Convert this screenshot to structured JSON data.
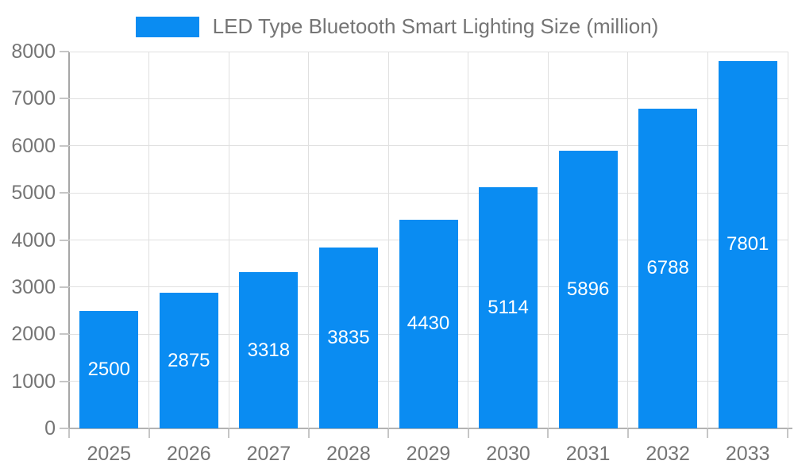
{
  "legend": {
    "label": "LED Type Bluetooth Smart Lighting Size (million)"
  },
  "colors": {
    "bar": "#0a8cf2",
    "axis_text": "#757575",
    "value_label_text": "#ffffff",
    "grid": "#e0e0e0",
    "axis_line": "#a6a6a6",
    "background": "#ffffff"
  },
  "chart_data": {
    "type": "bar",
    "title": "LED Type Bluetooth Smart Lighting Size (million)",
    "categories": [
      "2025",
      "2026",
      "2027",
      "2028",
      "2029",
      "2030",
      "2031",
      "2032",
      "2033"
    ],
    "values": [
      2500,
      2875,
      3318,
      3835,
      4430,
      5114,
      5896,
      6788,
      7801
    ],
    "xlabel": "",
    "ylabel": "",
    "ylim": [
      0,
      8000
    ],
    "yticks": [
      0,
      1000,
      2000,
      3000,
      4000,
      5000,
      6000,
      7000,
      8000
    ],
    "grid": true,
    "legend_position": "top",
    "bar_label_position": "inside-center"
  }
}
